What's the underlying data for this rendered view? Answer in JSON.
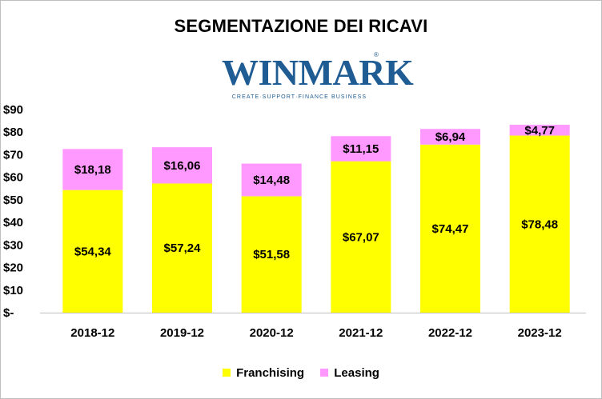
{
  "chart_data": {
    "type": "bar",
    "stacked": true,
    "title": "SEGMENTAZIONE DEI RICAVI",
    "categories": [
      "2018-12",
      "2019-12",
      "2020-12",
      "2021-12",
      "2022-12",
      "2023-12"
    ],
    "series": [
      {
        "name": "Franchising",
        "color": "#ffff00",
        "values": [
          54.34,
          57.24,
          51.58,
          67.07,
          74.47,
          78.48
        ],
        "labels": [
          "$54,34",
          "$57,24",
          "$51,58",
          "$67,07",
          "$74,47",
          "$78,48"
        ]
      },
      {
        "name": "Leasing",
        "color": "#ff99ff",
        "values": [
          18.18,
          16.06,
          14.48,
          11.15,
          6.94,
          4.77
        ],
        "labels": [
          "$18,18",
          "$16,06",
          "$14,48",
          "$11,15",
          "$6,94",
          "$4,77"
        ]
      }
    ],
    "ylim": [
      0,
      90
    ],
    "yticks": [
      0,
      10,
      20,
      30,
      40,
      50,
      60,
      70,
      80,
      90
    ],
    "ytick_labels": [
      "$-",
      "$10",
      "$20",
      "$30",
      "$40",
      "$50",
      "$60",
      "$70",
      "$80",
      "$90"
    ],
    "grid": false,
    "legend_position": "bottom"
  },
  "logo": {
    "wordmark": "WINMARK",
    "registered": "®",
    "tagline": "CREATE·SUPPORT·FINANCE BUSINESS",
    "color": "#1f5c93"
  }
}
